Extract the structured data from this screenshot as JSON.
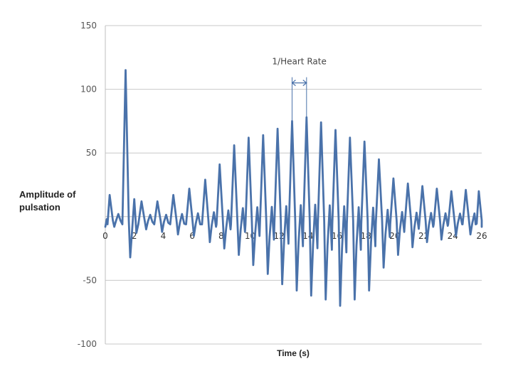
{
  "chart_data": {
    "type": "line",
    "title": "",
    "xlabel": "Time (s)",
    "ylabel": "Amplitude of pulsation",
    "xlim": [
      0,
      26
    ],
    "ylim": [
      -100,
      150
    ],
    "x_ticks": [
      0,
      2,
      4,
      6,
      8,
      10,
      12,
      14,
      16,
      18,
      20,
      22,
      24,
      26
    ],
    "y_ticks": [
      150,
      100,
      50,
      -50,
      -100
    ],
    "grid": "horizontal",
    "line_color": "#4a72aa",
    "annotation": {
      "text": "1/Heart Rate",
      "x_start": 12.9,
      "x_end": 13.9,
      "y": 105
    },
    "series": [
      {
        "peaks": [
          {
            "t": 0.3,
            "v": 17,
            "trough": -8
          },
          {
            "t": 1.4,
            "v": 115,
            "trough": -32
          },
          {
            "t": 2.5,
            "v": 12,
            "trough": -10
          },
          {
            "t": 3.6,
            "v": 12,
            "trough": -12
          },
          {
            "t": 4.7,
            "v": 17,
            "trough": -14
          },
          {
            "t": 5.8,
            "v": 22,
            "trough": -15
          },
          {
            "t": 6.9,
            "v": 29,
            "trough": -20
          },
          {
            "t": 7.9,
            "v": 41,
            "trough": -25
          },
          {
            "t": 8.9,
            "v": 56,
            "trough": -30
          },
          {
            "t": 9.9,
            "v": 62,
            "trough": -38
          },
          {
            "t": 10.9,
            "v": 64,
            "trough": -45
          },
          {
            "t": 11.9,
            "v": 69,
            "trough": -53
          },
          {
            "t": 12.9,
            "v": 75,
            "trough": -58
          },
          {
            "t": 13.9,
            "v": 78,
            "trough": -62
          },
          {
            "t": 14.9,
            "v": 74,
            "trough": -65
          },
          {
            "t": 15.9,
            "v": 68,
            "trough": -70
          },
          {
            "t": 16.9,
            "v": 62,
            "trough": -65
          },
          {
            "t": 17.9,
            "v": 59,
            "trough": -58
          },
          {
            "t": 18.9,
            "v": 45,
            "trough": -40
          },
          {
            "t": 19.9,
            "v": 30,
            "trough": -30
          },
          {
            "t": 20.9,
            "v": 26,
            "trough": -24
          },
          {
            "t": 21.9,
            "v": 24,
            "trough": -20
          },
          {
            "t": 22.9,
            "v": 22,
            "trough": -18
          },
          {
            "t": 23.9,
            "v": 20,
            "trough": -15
          },
          {
            "t": 24.9,
            "v": 21,
            "trough": -14
          },
          {
            "t": 25.8,
            "v": 20,
            "trough": -8
          }
        ]
      }
    ]
  }
}
